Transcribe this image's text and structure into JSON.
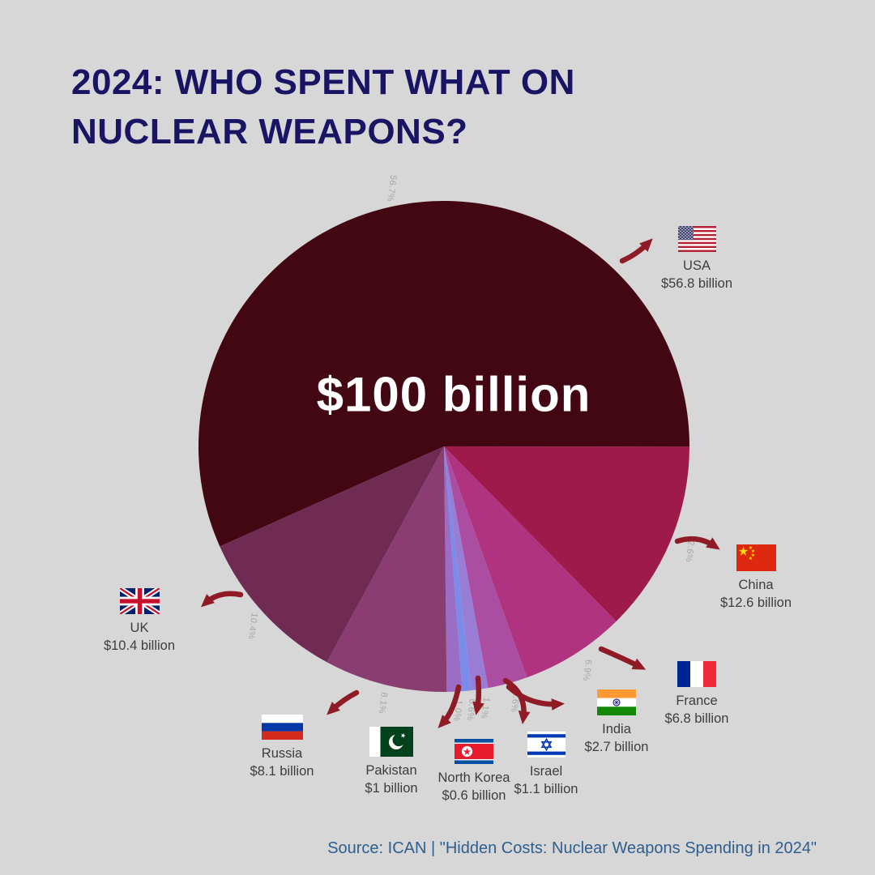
{
  "title": {
    "line1": "2024: WHO SPENT WHAT ON",
    "line2": "NUCLEAR WEAPONS?"
  },
  "center_label": "$100 billion",
  "source": "Source: ICAN | \"Hidden Costs: Nuclear Weapons Spending in 2024\"",
  "colors": {
    "background": "#d8d7d7",
    "title": "#1a1464",
    "center_text": "#ffffff",
    "label_text": "#3d3d3d",
    "pct_label": "#a8a5a5",
    "arrow": "#8e1b26",
    "source": "#2e5e8e"
  },
  "chart_data": {
    "type": "pie",
    "title": "2024: Who spent what on nuclear weapons?",
    "total_label": "$100 billion",
    "legend_position": "callouts-around-pie",
    "start_angle_deg_clockwise_from_top": 245.95,
    "series": [
      {
        "name": "USA",
        "amount": "$56.8 billion",
        "pct": 56.7,
        "pct_label": "56.7%",
        "color": "#420713"
      },
      {
        "name": "China",
        "amount": "$12.6 billion",
        "pct": 12.6,
        "pct_label": "12.6%",
        "color": "#9d1a4b"
      },
      {
        "name": "France",
        "amount": "$6.8 billion",
        "pct": 6.9,
        "pct_label": "6.9%",
        "color": "#b03380"
      },
      {
        "name": "India",
        "amount": "$2.7 billion",
        "pct": 2.6,
        "pct_label": "2.6%",
        "color": "#ab4da0"
      },
      {
        "name": "Israel",
        "amount": "$1.1 billion",
        "pct": 1.1,
        "pct_label": "1.1%",
        "color": "#997dd5"
      },
      {
        "name": "North Korea",
        "amount": "$0.6 billion",
        "pct": 0.6,
        "pct_label": "0.6%",
        "color": "#7b8bea"
      },
      {
        "name": "Pakistan",
        "amount": "$1 billion",
        "pct": 1.0,
        "pct_label": "1.0%",
        "color": "#9a6ec4"
      },
      {
        "name": "Russia",
        "amount": "$8.1 billion",
        "pct": 8.1,
        "pct_label": "8.1%",
        "color": "#8a3d70"
      },
      {
        "name": "UK",
        "amount": "$10.4 billion",
        "pct": 10.4,
        "pct_label": "10.4%",
        "color": "#702b53"
      }
    ]
  }
}
